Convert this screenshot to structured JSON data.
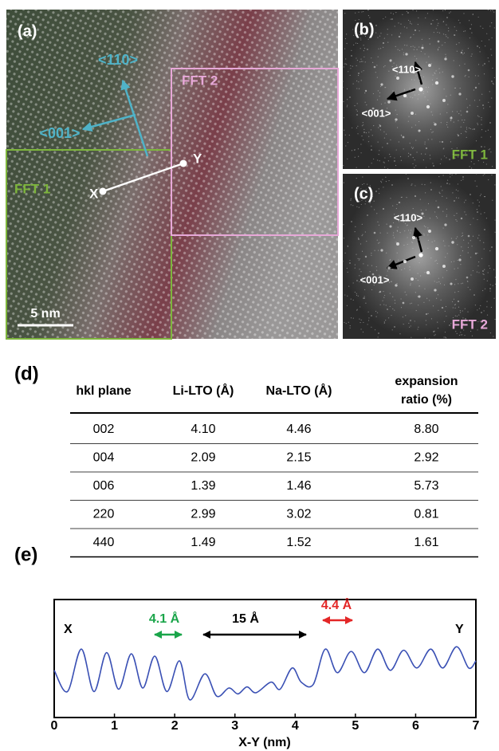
{
  "panel_a": {
    "label": "(a)",
    "direction_110": "<110>",
    "direction_001": "<001>",
    "fft1_box": "FFT 1",
    "fft2_box": "FFT 2",
    "point_x": "X",
    "point_y": "Y",
    "scale_bar": "5 nm"
  },
  "panel_b": {
    "label": "(b)",
    "direction_110": "<110>",
    "direction_001": "<001>",
    "caption": "FFT 1"
  },
  "panel_c": {
    "label": "(c)",
    "direction_110": "<110>",
    "direction_001": "<001>",
    "caption": "FFT 2"
  },
  "panel_d": {
    "label": "(d)",
    "table": {
      "columns": [
        "hkl plane",
        "Li-LTO (Å)",
        "Na-LTO (Å)",
        [
          "expansion",
          "ratio (%)"
        ]
      ],
      "rows": [
        [
          "002",
          "4.10",
          "4.46",
          "8.80"
        ],
        [
          "004",
          "2.09",
          "2.15",
          "2.92"
        ],
        [
          "006",
          "1.39",
          "1.46",
          "5.73"
        ],
        [
          "220",
          "2.99",
          "3.02",
          "0.81"
        ],
        [
          "440",
          "1.49",
          "1.52",
          "1.61"
        ]
      ]
    }
  },
  "chart_data": {
    "type": "line",
    "label": "(e)",
    "x_label": "X-Y (nm)",
    "xlim": [
      0,
      7
    ],
    "xticks": [
      0,
      1,
      2,
      3,
      4,
      5,
      6,
      7
    ],
    "ylim": [
      0,
      1
    ],
    "series": [
      {
        "color": "#3a50b4",
        "x": [
          0,
          0.22,
          0.45,
          0.66,
          0.87,
          1.07,
          1.28,
          1.47,
          1.67,
          1.87,
          2.08,
          2.25,
          2.5,
          2.7,
          2.9,
          3.05,
          3.2,
          3.35,
          3.6,
          3.75,
          3.95,
          4.1,
          4.3,
          4.5,
          4.7,
          4.93,
          5.15,
          5.37,
          5.58,
          5.8,
          6.02,
          6.25,
          6.45,
          6.68,
          6.88,
          7
        ],
        "values": [
          0.4,
          0.22,
          0.58,
          0.22,
          0.55,
          0.24,
          0.54,
          0.25,
          0.52,
          0.22,
          0.48,
          0.15,
          0.37,
          0.18,
          0.25,
          0.2,
          0.26,
          0.21,
          0.3,
          0.24,
          0.42,
          0.3,
          0.28,
          0.58,
          0.38,
          0.56,
          0.38,
          0.58,
          0.4,
          0.57,
          0.42,
          0.58,
          0.42,
          0.6,
          0.42,
          0.48
        ]
      }
    ],
    "annotations": {
      "start": "X",
      "end": "Y",
      "spacing_left": "4.1 Å",
      "gap": "15 Å",
      "spacing_right": "4.4 Å"
    }
  }
}
